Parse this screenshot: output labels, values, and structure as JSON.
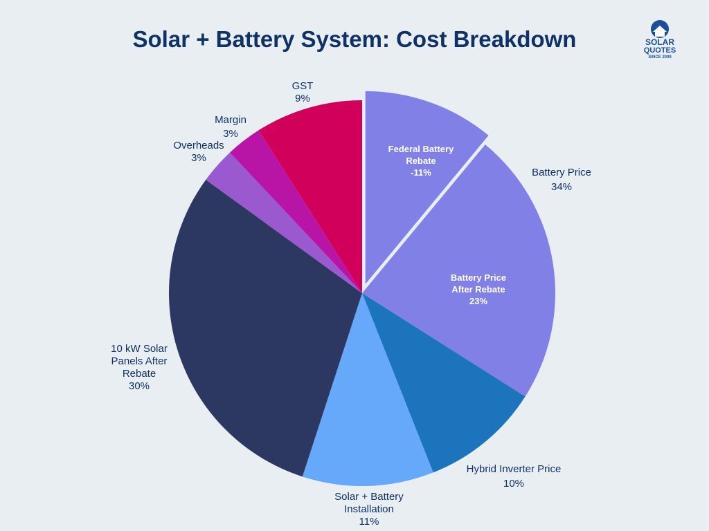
{
  "title": "Solar + Battery System: Cost Breakdown",
  "logo": {
    "line1": "SOLAR",
    "line2": "QUOTES",
    "line3": "SINCE 2009",
    "icon": "house-sun-icon",
    "color": "#1b4f9c"
  },
  "chart_data": {
    "type": "pie",
    "title": "Solar + Battery System: Cost Breakdown",
    "slices": [
      {
        "label": [
          "GST",
          "9%"
        ],
        "value": 9,
        "color": "#d1005a"
      },
      {
        "label": [
          "Federal Battery",
          "Rebate",
          "-11%"
        ],
        "value": 11,
        "color": "#8080e6",
        "exploded": true,
        "display": -11
      },
      {
        "label": [
          "Battery Price After Rebate",
          "23%"
        ],
        "value": 23,
        "color": "#8080e6"
      },
      {
        "label": [
          "Hybrid Inverter Price",
          "10%"
        ],
        "value": 10,
        "color": "#1c75bc"
      },
      {
        "label": [
          "Solar + Battery Installation",
          "11%"
        ],
        "value": 11,
        "color": "#66a8fa"
      },
      {
        "label": [
          "10 kW Solar Panels After Rebate",
          "30%"
        ],
        "value": 30,
        "color": "#2c3862"
      },
      {
        "label": [
          "Overheads",
          "3%"
        ],
        "value": 3,
        "color": "#9b59d0"
      },
      {
        "label": [
          "Margin",
          "3%"
        ],
        "value": 3,
        "color": "#b814a6"
      }
    ],
    "bracket_label": [
      "Battery Price",
      "34%"
    ],
    "label_lines": {
      "gst": [
        "GST",
        "9%"
      ],
      "margin": [
        "Margin",
        "3%"
      ],
      "overheads": [
        "Overheads",
        "3%"
      ],
      "panels": [
        "10 kW Solar",
        "Panels After",
        "Rebate",
        "30%"
      ],
      "install": [
        "Solar + Battery",
        "Installation",
        "11%"
      ],
      "inverter": [
        "Hybrid Inverter Price",
        "10%"
      ],
      "battery_after": [
        "Battery Price",
        "After Rebate",
        "23%"
      ],
      "rebate": [
        "Federal Battery",
        "Rebate",
        "-11%"
      ],
      "battery_total": [
        "Battery Price",
        "34%"
      ]
    }
  }
}
